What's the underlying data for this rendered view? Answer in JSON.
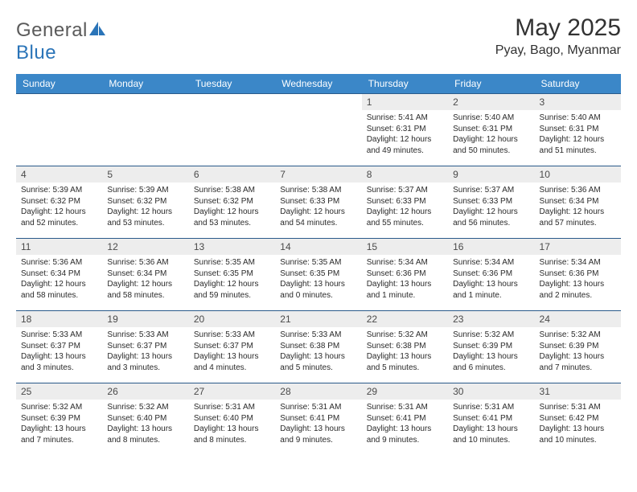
{
  "logo": {
    "word1": "General",
    "word2": "Blue"
  },
  "title": "May 2025",
  "location": "Pyay, Bago, Myanmar",
  "colors": {
    "header_bg": "#3b87c8",
    "header_text": "#ffffff",
    "row_border": "#2a5a8a",
    "daynum_bg": "#ededed",
    "body_text": "#2a2a2a",
    "logo_gray": "#5a5a5a",
    "logo_blue": "#2a74b8"
  },
  "weekdays": [
    "Sunday",
    "Monday",
    "Tuesday",
    "Wednesday",
    "Thursday",
    "Friday",
    "Saturday"
  ],
  "weeks": [
    [
      {
        "n": "",
        "sr": "",
        "ss": "",
        "dl": ""
      },
      {
        "n": "",
        "sr": "",
        "ss": "",
        "dl": ""
      },
      {
        "n": "",
        "sr": "",
        "ss": "",
        "dl": ""
      },
      {
        "n": "",
        "sr": "",
        "ss": "",
        "dl": ""
      },
      {
        "n": "1",
        "sr": "Sunrise: 5:41 AM",
        "ss": "Sunset: 6:31 PM",
        "dl": "Daylight: 12 hours and 49 minutes."
      },
      {
        "n": "2",
        "sr": "Sunrise: 5:40 AM",
        "ss": "Sunset: 6:31 PM",
        "dl": "Daylight: 12 hours and 50 minutes."
      },
      {
        "n": "3",
        "sr": "Sunrise: 5:40 AM",
        "ss": "Sunset: 6:31 PM",
        "dl": "Daylight: 12 hours and 51 minutes."
      }
    ],
    [
      {
        "n": "4",
        "sr": "Sunrise: 5:39 AM",
        "ss": "Sunset: 6:32 PM",
        "dl": "Daylight: 12 hours and 52 minutes."
      },
      {
        "n": "5",
        "sr": "Sunrise: 5:39 AM",
        "ss": "Sunset: 6:32 PM",
        "dl": "Daylight: 12 hours and 53 minutes."
      },
      {
        "n": "6",
        "sr": "Sunrise: 5:38 AM",
        "ss": "Sunset: 6:32 PM",
        "dl": "Daylight: 12 hours and 53 minutes."
      },
      {
        "n": "7",
        "sr": "Sunrise: 5:38 AM",
        "ss": "Sunset: 6:33 PM",
        "dl": "Daylight: 12 hours and 54 minutes."
      },
      {
        "n": "8",
        "sr": "Sunrise: 5:37 AM",
        "ss": "Sunset: 6:33 PM",
        "dl": "Daylight: 12 hours and 55 minutes."
      },
      {
        "n": "9",
        "sr": "Sunrise: 5:37 AM",
        "ss": "Sunset: 6:33 PM",
        "dl": "Daylight: 12 hours and 56 minutes."
      },
      {
        "n": "10",
        "sr": "Sunrise: 5:36 AM",
        "ss": "Sunset: 6:34 PM",
        "dl": "Daylight: 12 hours and 57 minutes."
      }
    ],
    [
      {
        "n": "11",
        "sr": "Sunrise: 5:36 AM",
        "ss": "Sunset: 6:34 PM",
        "dl": "Daylight: 12 hours and 58 minutes."
      },
      {
        "n": "12",
        "sr": "Sunrise: 5:36 AM",
        "ss": "Sunset: 6:34 PM",
        "dl": "Daylight: 12 hours and 58 minutes."
      },
      {
        "n": "13",
        "sr": "Sunrise: 5:35 AM",
        "ss": "Sunset: 6:35 PM",
        "dl": "Daylight: 12 hours and 59 minutes."
      },
      {
        "n": "14",
        "sr": "Sunrise: 5:35 AM",
        "ss": "Sunset: 6:35 PM",
        "dl": "Daylight: 13 hours and 0 minutes."
      },
      {
        "n": "15",
        "sr": "Sunrise: 5:34 AM",
        "ss": "Sunset: 6:36 PM",
        "dl": "Daylight: 13 hours and 1 minute."
      },
      {
        "n": "16",
        "sr": "Sunrise: 5:34 AM",
        "ss": "Sunset: 6:36 PM",
        "dl": "Daylight: 13 hours and 1 minute."
      },
      {
        "n": "17",
        "sr": "Sunrise: 5:34 AM",
        "ss": "Sunset: 6:36 PM",
        "dl": "Daylight: 13 hours and 2 minutes."
      }
    ],
    [
      {
        "n": "18",
        "sr": "Sunrise: 5:33 AM",
        "ss": "Sunset: 6:37 PM",
        "dl": "Daylight: 13 hours and 3 minutes."
      },
      {
        "n": "19",
        "sr": "Sunrise: 5:33 AM",
        "ss": "Sunset: 6:37 PM",
        "dl": "Daylight: 13 hours and 3 minutes."
      },
      {
        "n": "20",
        "sr": "Sunrise: 5:33 AM",
        "ss": "Sunset: 6:37 PM",
        "dl": "Daylight: 13 hours and 4 minutes."
      },
      {
        "n": "21",
        "sr": "Sunrise: 5:33 AM",
        "ss": "Sunset: 6:38 PM",
        "dl": "Daylight: 13 hours and 5 minutes."
      },
      {
        "n": "22",
        "sr": "Sunrise: 5:32 AM",
        "ss": "Sunset: 6:38 PM",
        "dl": "Daylight: 13 hours and 5 minutes."
      },
      {
        "n": "23",
        "sr": "Sunrise: 5:32 AM",
        "ss": "Sunset: 6:39 PM",
        "dl": "Daylight: 13 hours and 6 minutes."
      },
      {
        "n": "24",
        "sr": "Sunrise: 5:32 AM",
        "ss": "Sunset: 6:39 PM",
        "dl": "Daylight: 13 hours and 7 minutes."
      }
    ],
    [
      {
        "n": "25",
        "sr": "Sunrise: 5:32 AM",
        "ss": "Sunset: 6:39 PM",
        "dl": "Daylight: 13 hours and 7 minutes."
      },
      {
        "n": "26",
        "sr": "Sunrise: 5:32 AM",
        "ss": "Sunset: 6:40 PM",
        "dl": "Daylight: 13 hours and 8 minutes."
      },
      {
        "n": "27",
        "sr": "Sunrise: 5:31 AM",
        "ss": "Sunset: 6:40 PM",
        "dl": "Daylight: 13 hours and 8 minutes."
      },
      {
        "n": "28",
        "sr": "Sunrise: 5:31 AM",
        "ss": "Sunset: 6:41 PM",
        "dl": "Daylight: 13 hours and 9 minutes."
      },
      {
        "n": "29",
        "sr": "Sunrise: 5:31 AM",
        "ss": "Sunset: 6:41 PM",
        "dl": "Daylight: 13 hours and 9 minutes."
      },
      {
        "n": "30",
        "sr": "Sunrise: 5:31 AM",
        "ss": "Sunset: 6:41 PM",
        "dl": "Daylight: 13 hours and 10 minutes."
      },
      {
        "n": "31",
        "sr": "Sunrise: 5:31 AM",
        "ss": "Sunset: 6:42 PM",
        "dl": "Daylight: 13 hours and 10 minutes."
      }
    ]
  ]
}
